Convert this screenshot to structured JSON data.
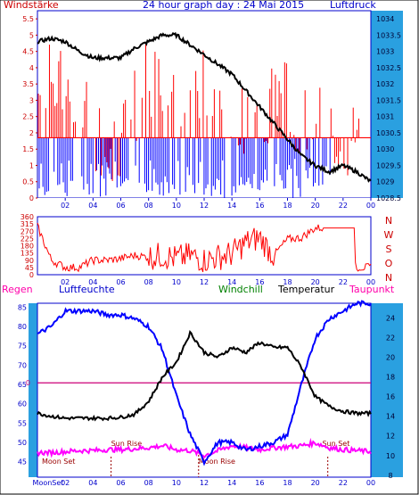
{
  "colors": {
    "frame": "#0000cc",
    "axis_bg": "#2aa0e0",
    "wind_red": "#ff0000",
    "wind_blue": "#0000ff",
    "pressure": "#000000",
    "humidity": "#0000ff",
    "temperature": "#000000",
    "dewpoint": "#ff00ff",
    "rain_line": "#cc0077",
    "windchill": "#008000",
    "label_red": "#cc0000",
    "label_magenta": "#ff00aa",
    "label_darkred": "#990000"
  },
  "panel1": {
    "title": "24 hour graph day : 24 Mai 2015",
    "left_label": "Windstärke",
    "right_label": "Luftdruck",
    "left_ticks": [
      "5.5",
      "5",
      "4.5",
      "4",
      "3.5",
      "3",
      "2.5",
      "2",
      "1.5",
      "1",
      "0.5",
      "0"
    ],
    "right_ticks": [
      "1034",
      "1033.5",
      "1033",
      "1032.5",
      "1032",
      "1031.5",
      "1031",
      "1030.5",
      "1030",
      "1029.5",
      "1029",
      "1028.5"
    ],
    "x_ticks": [
      "02",
      "04",
      "06",
      "08",
      "10",
      "12",
      "14",
      "16",
      "18",
      "20",
      "22",
      "00"
    ]
  },
  "panel2": {
    "left_ticks": [
      "360",
      "315",
      "270",
      "225",
      "180",
      "135",
      "90",
      "45",
      "0"
    ],
    "right_dirs": [
      "N",
      "W",
      "S",
      "O",
      "N"
    ],
    "x_ticks": [
      "02",
      "04",
      "06",
      "08",
      "10",
      "12",
      "14",
      "16",
      "18",
      "20",
      "22",
      "00"
    ]
  },
  "panel3": {
    "labels": {
      "regen": "Regen",
      "humidity": "Luftfeuchte",
      "windchill": "Windchill",
      "temperature": "Temperatur",
      "dewpoint": "Taupunkt"
    },
    "rain_zero": "0",
    "left_ticks": [
      "85",
      "80",
      "75",
      "70",
      "65",
      "60",
      "55",
      "50",
      "45"
    ],
    "right_ticks": [
      "24",
      "22",
      "20",
      "18",
      "16",
      "14",
      "12",
      "10",
      "8"
    ],
    "x_ticks": [
      "02",
      "04",
      "06",
      "08",
      "10",
      "12",
      "14",
      "16",
      "18",
      "20",
      "22",
      "00"
    ],
    "moonset_first": "MoonSet",
    "events": {
      "sun_rise": "Sun Rise",
      "moon_set": "Moon Set",
      "moon_rise": "Moon Rise",
      "sun_set": "Sun Set"
    }
  },
  "chart_data": [
    {
      "type": "line",
      "title": "24 hour graph day : 24 Mai 2015",
      "xlabel": "",
      "series": [
        {
          "name": "Luftdruck",
          "axis": "right",
          "ylim": [
            1028.5,
            1034.25
          ],
          "x": [
            0,
            1,
            2,
            3,
            4,
            5,
            6,
            7,
            8,
            9,
            10,
            11,
            12,
            13,
            14,
            15,
            16,
            17,
            18,
            19,
            20,
            21,
            22,
            23,
            24
          ],
          "values": [
            1033.3,
            1033.4,
            1033.3,
            1033.0,
            1032.8,
            1032.8,
            1032.8,
            1033.1,
            1033.3,
            1033.5,
            1033.5,
            1033.2,
            1032.9,
            1032.6,
            1032.3,
            1031.8,
            1031.3,
            1030.8,
            1030.3,
            1029.8,
            1029.5,
            1029.3,
            1029.5,
            1029.3,
            1029.0
          ]
        },
        {
          "name": "Windstärke",
          "axis": "left",
          "ylim": [
            0,
            5.75
          ],
          "x": [
            0,
            1,
            2,
            3,
            4,
            5,
            6,
            7,
            8,
            9,
            10,
            11,
            12,
            13,
            14,
            15,
            16,
            17,
            18,
            19,
            20,
            21,
            22,
            23,
            24
          ],
          "values": [
            1.8,
            2.5,
            2.0,
            1.5,
            0.8,
            0.5,
            0.5,
            1.5,
            2.5,
            1.8,
            2.0,
            1.5,
            2.5,
            1.8,
            1.0,
            1.0,
            1.8,
            1.5,
            1.8,
            1.0,
            1.5,
            0.8,
            0.5,
            0.5,
            0.0
          ]
        }
      ]
    },
    {
      "type": "line",
      "title": "",
      "ylabel": "",
      "ylim": [
        0,
        360
      ],
      "series": [
        {
          "name": "",
          "x": [
            0,
            1,
            2,
            3,
            4,
            5,
            6,
            7,
            8,
            9,
            10,
            11,
            12,
            13,
            14,
            15,
            16,
            17,
            18,
            19,
            20,
            21,
            22,
            23,
            24
          ],
          "values": [
            300,
            90,
            45,
            45,
            90,
            90,
            100,
            120,
            110,
            120,
            100,
            120,
            90,
            110,
            130,
            200,
            230,
            120,
            220,
            230,
            290,
            290,
            290,
            45,
            45
          ]
        }
      ]
    },
    {
      "type": "line",
      "title": "",
      "series": [
        {
          "name": "Luftfeuchte",
          "axis": "left",
          "ylim": [
            41,
            86
          ],
          "x": [
            0,
            1,
            2,
            3,
            4,
            5,
            6,
            7,
            8,
            9,
            10,
            11,
            12,
            13,
            14,
            15,
            16,
            17,
            18,
            19,
            20,
            21,
            22,
            23,
            24
          ],
          "values": [
            78,
            80,
            84,
            84,
            84,
            83,
            83,
            82,
            80,
            74,
            62,
            52,
            45,
            50,
            50,
            48,
            49,
            50,
            52,
            65,
            77,
            82,
            84,
            86,
            86
          ]
        },
        {
          "name": "Temperatur",
          "axis": "right",
          "ylim": [
            7.8,
            25.5
          ],
          "x": [
            0,
            1,
            2,
            3,
            4,
            5,
            6,
            7,
            8,
            9,
            10,
            11,
            12,
            13,
            14,
            15,
            16,
            17,
            18,
            19,
            20,
            21,
            22,
            23,
            24
          ],
          "values": [
            14.3,
            14.0,
            13.8,
            13.8,
            13.8,
            13.8,
            13.9,
            14.2,
            15.5,
            18,
            19.5,
            22.5,
            20.5,
            20,
            21,
            20.5,
            21.5,
            21,
            21,
            19,
            16,
            15,
            14.5,
            14.3,
            14.3
          ]
        },
        {
          "name": "Taupunkt",
          "axis": "right",
          "ylim": [
            7.8,
            25.5
          ],
          "x": [
            0,
            1,
            2,
            3,
            4,
            5,
            6,
            7,
            8,
            9,
            10,
            11,
            12,
            13,
            14,
            15,
            16,
            17,
            18,
            19,
            20,
            21,
            22,
            23,
            24
          ],
          "values": [
            10.3,
            10.3,
            10.4,
            10.5,
            10.5,
            10.6,
            10.6,
            10.7,
            10.8,
            11,
            10.6,
            10.5,
            10,
            10.5,
            11,
            10.8,
            10.6,
            10.8,
            10.9,
            11,
            11.3,
            10.8,
            10.6,
            10.5,
            10.4
          ]
        },
        {
          "name": "Regen",
          "axis": "rain",
          "values": [
            0,
            0,
            0,
            0,
            0,
            0,
            0,
            0,
            0,
            0,
            0,
            0,
            0,
            0,
            0,
            0,
            0,
            0,
            0,
            0,
            0,
            0,
            0,
            0,
            0
          ]
        }
      ]
    }
  ]
}
